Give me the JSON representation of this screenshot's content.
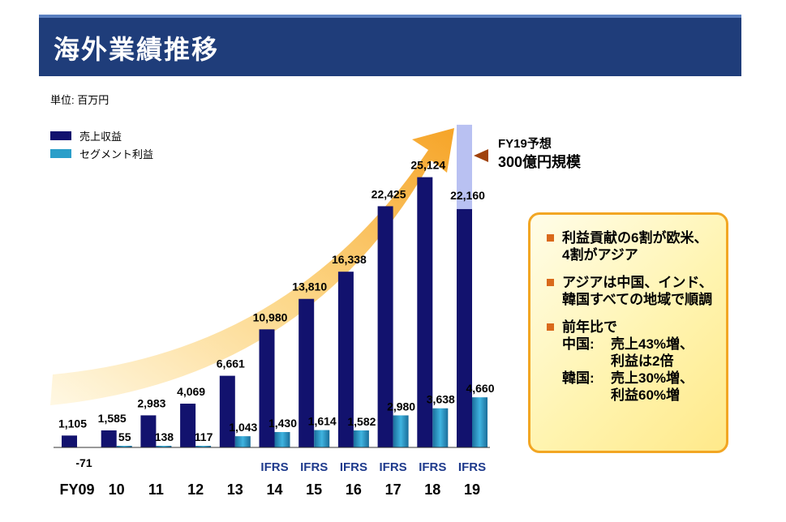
{
  "title": "海外業績推移",
  "unit": "単位: 百万円",
  "forecast": {
    "line1": "FY19予想",
    "line2": "300億円規模"
  },
  "callout": {
    "bullets": [
      "利益貢献の6割が欧米、4割がアジア",
      "アジアは中国、インド、韓国すべての地域で順調",
      "前年比で"
    ],
    "details": [
      {
        "a": "中国:",
        "b": "売上43%増、"
      },
      {
        "a": "",
        "b": "利益は2倍"
      },
      {
        "a": "韓国:",
        "b": "売上30%増、"
      },
      {
        "a": "",
        "b": "利益60%増"
      }
    ]
  },
  "colors": {
    "revenue": "#12126e",
    "profit": "#2a9ec9",
    "forecast": "#b9c1f2",
    "arrow": "#f7a423"
  },
  "chart_data": {
    "type": "bar",
    "categories": [
      "FY09",
      "10",
      "11",
      "12",
      "13",
      "14",
      "15",
      "16",
      "17",
      "18",
      "19"
    ],
    "ifrs_label": "IFRS",
    "ifrs_from_index": 5,
    "series": [
      {
        "name": "売上収益",
        "values": [
          1105,
          1585,
          2983,
          4069,
          6661,
          10980,
          13810,
          16338,
          22425,
          25124,
          22160
        ],
        "labels": [
          "1,105",
          "1,585",
          "2,983",
          "4,069",
          "6,661",
          "10,980",
          "13,810",
          "16,338",
          "22,425",
          "25,124",
          "22,160"
        ]
      },
      {
        "name": "セグメント利益",
        "values": [
          -71,
          55,
          138,
          117,
          1043,
          1430,
          1614,
          1582,
          2980,
          3638,
          4660
        ],
        "labels": [
          "-71",
          "55",
          "138",
          "117",
          "1,043",
          "1,430",
          "1,614",
          "1,582",
          "2,980",
          "3,638",
          "4,660"
        ]
      }
    ],
    "forecast_total": 30000,
    "ylim": [
      0,
      26000
    ],
    "title": "海外業績推移",
    "xlabel": "",
    "ylabel": ""
  }
}
